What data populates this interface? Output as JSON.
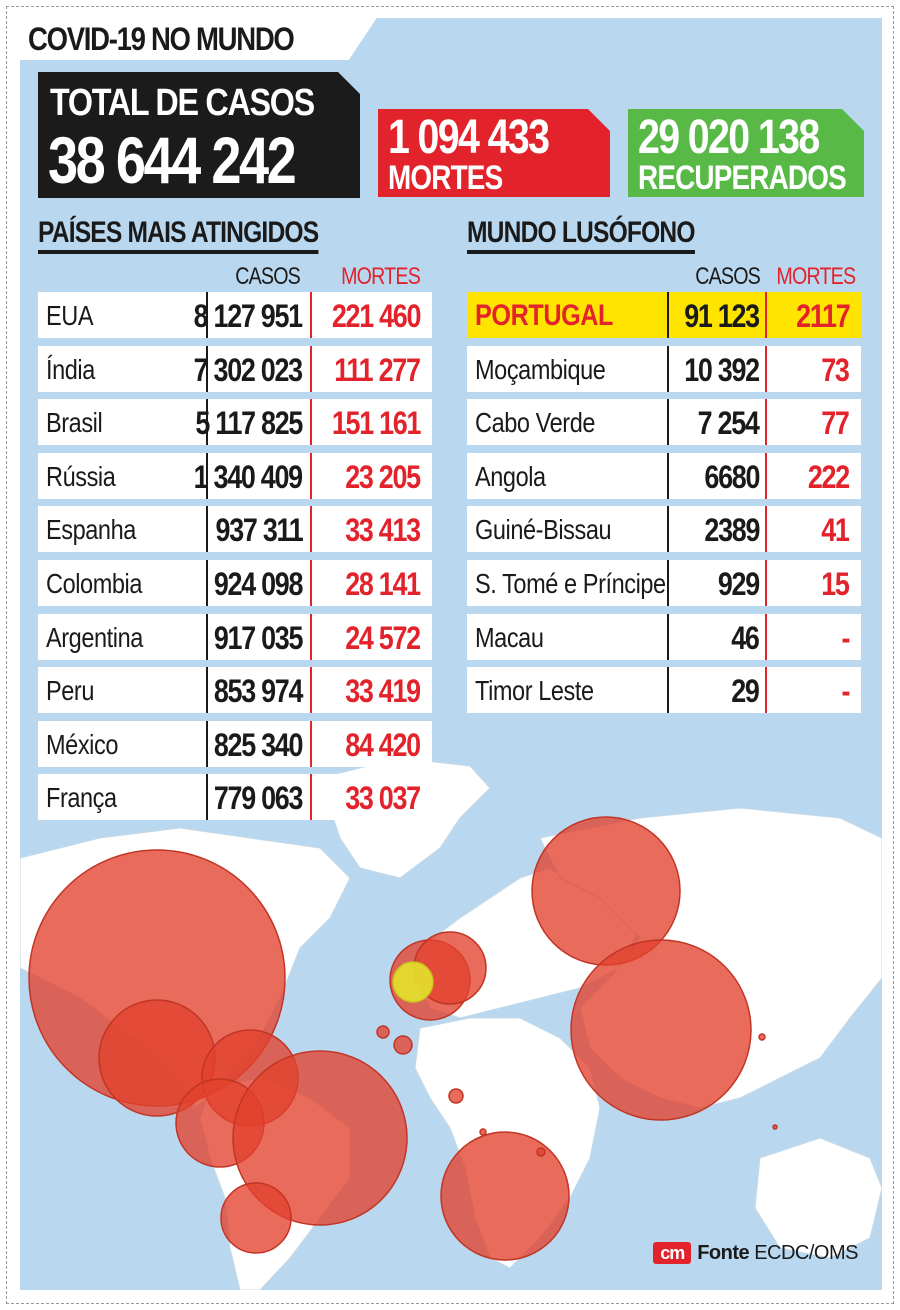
{
  "title": "COVID-19 NO MUNDO",
  "total": {
    "label": "TOTAL DE CASOS",
    "value": "38 644 242"
  },
  "deaths": {
    "value": "1 094 433",
    "label": "MORTES"
  },
  "recovered": {
    "value": "29 020 138",
    "label": "RECUPERADOS"
  },
  "colors": {
    "red": "#e3232b",
    "green": "#58b947",
    "yellow": "#ffe400",
    "ocean": "#b9d8ef",
    "bubble": "#e2412d"
  },
  "most_affected": {
    "title": "PAÍSES MAIS ATINGIDOS",
    "col_cases": "CASOS",
    "col_deaths": "MORTES",
    "rows": [
      {
        "name": "EUA",
        "cases": "8 127 951",
        "deaths": "221 460"
      },
      {
        "name": "Índia",
        "cases": "7 302 023",
        "deaths": "111 277"
      },
      {
        "name": "Brasil",
        "cases": "5 117 825",
        "deaths": "151 161"
      },
      {
        "name": "Rússia",
        "cases": "1 340 409",
        "deaths": "23 205"
      },
      {
        "name": "Espanha",
        "cases": "937 311",
        "deaths": "33 413"
      },
      {
        "name": "Colombia",
        "cases": "924 098",
        "deaths": "28 141"
      },
      {
        "name": "Argentina",
        "cases": "917 035",
        "deaths": "24 572"
      },
      {
        "name": "Peru",
        "cases": "853 974",
        "deaths": "33 419"
      },
      {
        "name": "México",
        "cases": "825 340",
        "deaths": "84 420"
      },
      {
        "name": "França",
        "cases": "779 063",
        "deaths": "33 037"
      }
    ]
  },
  "lusophone": {
    "title": "MUNDO LUSÓFONO",
    "col_cases": "CASOS",
    "col_deaths": "MORTES",
    "rows": [
      {
        "name": "PORTUGAL",
        "cases": "91 123",
        "deaths": "2117",
        "highlight": true
      },
      {
        "name": "Moçambique",
        "cases": "10 392",
        "deaths": "73"
      },
      {
        "name": "Cabo Verde",
        "cases": "7 254",
        "deaths": "77"
      },
      {
        "name": "Angola",
        "cases": "6680",
        "deaths": "222"
      },
      {
        "name": "Guiné-Bissau",
        "cases": "2389",
        "deaths": "41"
      },
      {
        "name": "S. Tomé e Príncipe",
        "cases": "929",
        "deaths": "15"
      },
      {
        "name": "Macau",
        "cases": "46",
        "deaths": "-"
      },
      {
        "name": "Timor Leste",
        "cases": "29",
        "deaths": "-"
      }
    ]
  },
  "source": {
    "logo": "cm",
    "label": "Fonte",
    "text": "ECDC/OMS"
  }
}
